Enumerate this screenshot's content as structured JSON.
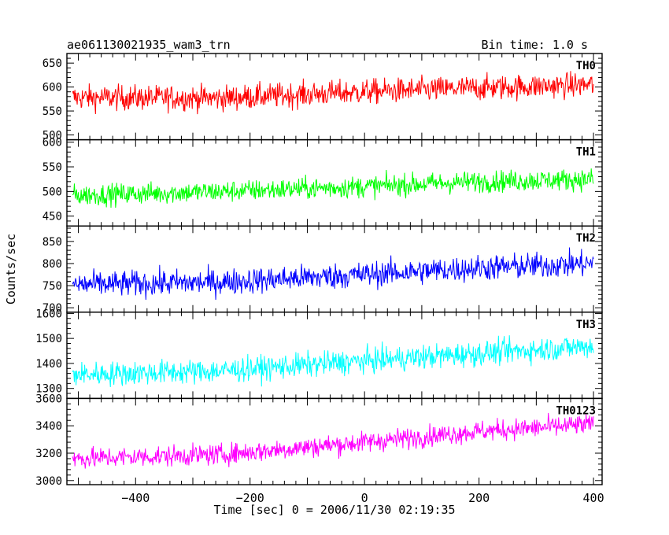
{
  "header": {
    "title": "ae061130021935_wam3_trn",
    "bin_time": "Bin time: 1.0 s"
  },
  "chart_data": {
    "type": "line",
    "title": "ae061130021935_wam3_trn",
    "bin_time": "Bin time: 1.0 s",
    "xlabel": "Time [sec] 0 = 2006/11/30 02:19:35",
    "ylabel": "Counts/sec",
    "xlim": [
      -520,
      415
    ],
    "x_ticks": [
      -400,
      -200,
      0,
      200,
      400
    ],
    "x_tick_labels": [
      "−400",
      "−200",
      "0",
      "200",
      "400"
    ],
    "panels": [
      {
        "name": "TH0",
        "color": "#ff0000",
        "ylim": [
          490,
          670
        ],
        "ticks": [
          500,
          550,
          600,
          650
        ],
        "x_start": -510,
        "x_end": 400,
        "trend": [
          [
            -510,
            578
          ],
          [
            -250,
            577
          ],
          [
            0,
            590
          ],
          [
            200,
            598
          ],
          [
            400,
            605
          ]
        ],
        "noise": 24
      },
      {
        "name": "TH1",
        "color": "#00ff00",
        "ylim": [
          430,
          605
        ],
        "ticks": [
          450,
          500,
          550,
          600
        ],
        "x_start": -510,
        "x_end": 400,
        "trend": [
          [
            -510,
            492
          ],
          [
            -250,
            500
          ],
          [
            0,
            510
          ],
          [
            200,
            520
          ],
          [
            400,
            525
          ]
        ],
        "noise": 20
      },
      {
        "name": "TH2",
        "color": "#0000ff",
        "ylim": [
          690,
          885
        ],
        "ticks": [
          700,
          750,
          800,
          850
        ],
        "x_start": -510,
        "x_end": 400,
        "trend": [
          [
            -510,
            752
          ],
          [
            -250,
            758
          ],
          [
            0,
            775
          ],
          [
            200,
            790
          ],
          [
            400,
            800
          ]
        ],
        "noise": 27
      },
      {
        "name": "TH3",
        "color": "#00ffff",
        "ylim": [
          1260,
          1605
        ],
        "ticks": [
          1300,
          1400,
          1500,
          1600
        ],
        "x_start": -510,
        "x_end": 400,
        "trend": [
          [
            -510,
            1355
          ],
          [
            -250,
            1370
          ],
          [
            0,
            1410
          ],
          [
            200,
            1440
          ],
          [
            400,
            1470
          ]
        ],
        "noise": 45
      },
      {
        "name": "TH0123",
        "color": "#ff00ff",
        "ylim": [
          2970,
          3600
        ],
        "ticks": [
          3000,
          3200,
          3400,
          3600
        ],
        "x_start": -510,
        "x_end": 400,
        "trend": [
          [
            -510,
            3160
          ],
          [
            -250,
            3190
          ],
          [
            0,
            3280
          ],
          [
            200,
            3360
          ],
          [
            400,
            3410
          ]
        ],
        "noise": 70
      }
    ]
  }
}
